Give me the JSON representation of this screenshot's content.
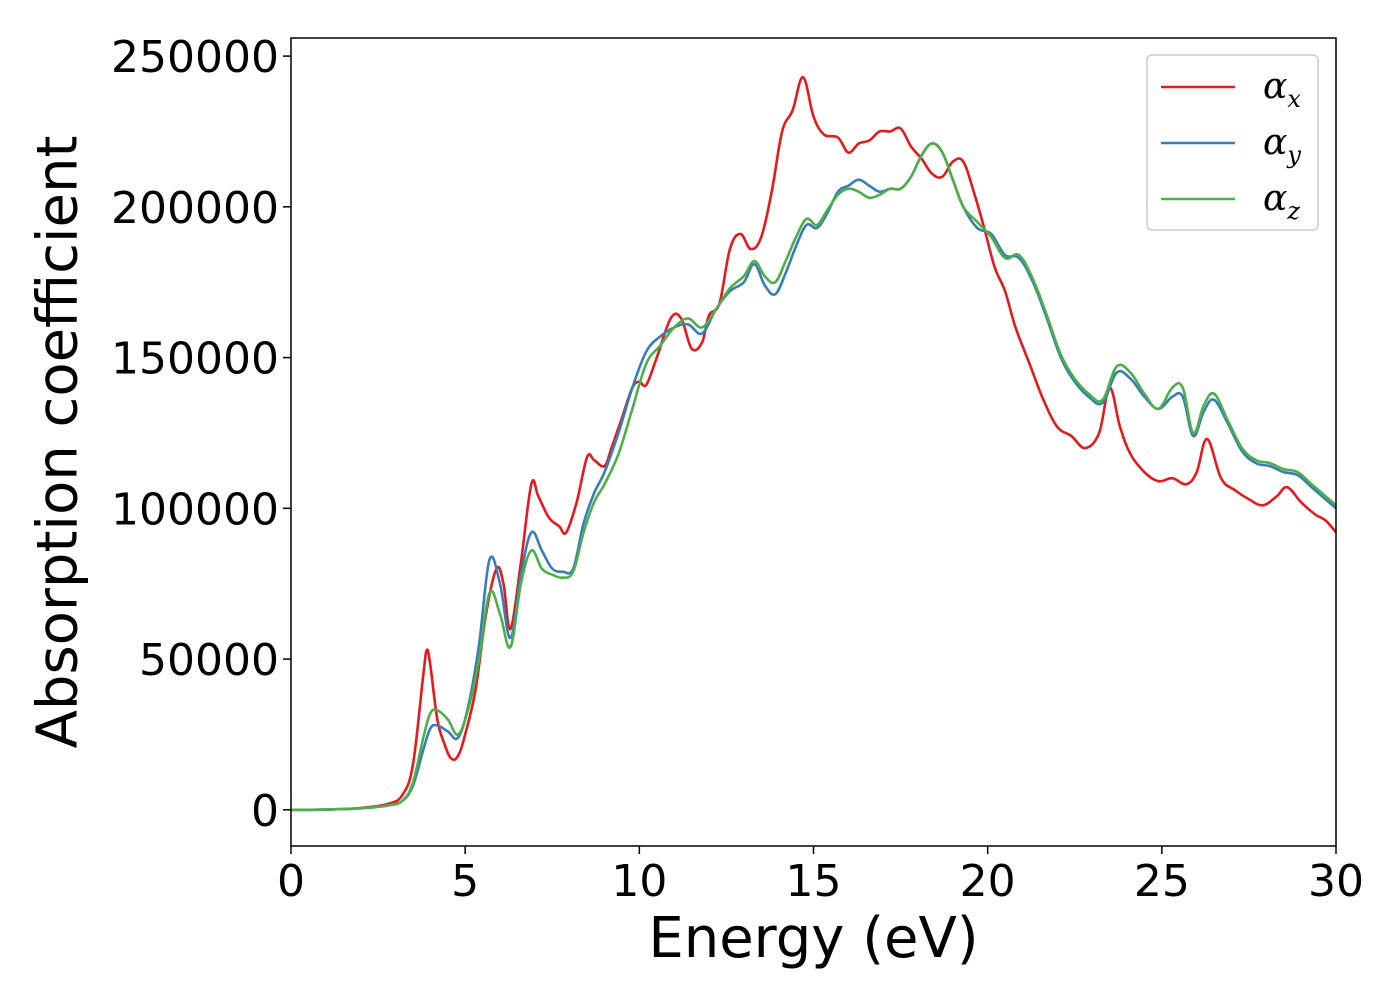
{
  "chart_data": {
    "type": "line",
    "title": "",
    "xlabel": "Energy (eV)",
    "ylabel": "Absorption coefficient",
    "xlim": [
      0,
      30
    ],
    "ylim": [
      -12000,
      256000
    ],
    "xticks": [
      0,
      5,
      10,
      15,
      20,
      25,
      30
    ],
    "yticks": [
      0,
      50000,
      100000,
      150000,
      200000,
      250000
    ],
    "grid": false,
    "legend_position": "top-right",
    "series": [
      {
        "name": "α",
        "subscript": "x",
        "color": "#e41a1c",
        "x": [
          0,
          1,
          2,
          2.8,
          3.2,
          3.5,
          3.8,
          3.9,
          4.0,
          4.2,
          4.4,
          4.6,
          4.8,
          5.0,
          5.3,
          5.6,
          5.9,
          6.1,
          6.3,
          6.6,
          6.9,
          7.1,
          7.4,
          7.7,
          7.9,
          8.2,
          8.5,
          8.7,
          9.0,
          9.2,
          9.5,
          9.8,
          10.0,
          10.2,
          10.5,
          10.9,
          11.2,
          11.5,
          11.8,
          12.0,
          12.3,
          12.6,
          12.9,
          13.2,
          13.5,
          13.8,
          14.1,
          14.4,
          14.7,
          15.0,
          15.3,
          15.7,
          16.0,
          16.3,
          16.6,
          16.9,
          17.2,
          17.5,
          17.8,
          18.1,
          18.4,
          18.7,
          19.0,
          19.3,
          19.6,
          19.9,
          20.2,
          20.5,
          20.8,
          21.2,
          21.6,
          22.0,
          22.4,
          22.8,
          23.2,
          23.5,
          23.8,
          24.1,
          24.5,
          24.9,
          25.3,
          25.7,
          26.0,
          26.3,
          26.7,
          27.1,
          27.5,
          27.9,
          28.3,
          28.6,
          29.0,
          29.4,
          29.7,
          30.0
        ],
        "values": [
          0,
          100,
          600,
          2000,
          5000,
          15000,
          45000,
          53000,
          48000,
          30000,
          22000,
          17000,
          18000,
          25000,
          40000,
          65000,
          80000,
          75000,
          60000,
          82000,
          108000,
          104000,
          97000,
          94000,
          92000,
          102000,
          117000,
          116000,
          114000,
          120000,
          130000,
          140000,
          142000,
          141000,
          150000,
          163000,
          163000,
          153000,
          155000,
          164000,
          168000,
          186000,
          191000,
          186000,
          190000,
          205000,
          225000,
          232000,
          243000,
          230000,
          224000,
          223000,
          218000,
          221000,
          222000,
          225000,
          225000,
          226000,
          220000,
          216000,
          211000,
          210000,
          215000,
          215000,
          205000,
          193000,
          180000,
          172000,
          160000,
          148000,
          136000,
          127000,
          124000,
          120000,
          125000,
          140000,
          127000,
          118000,
          112000,
          109000,
          110000,
          108000,
          112000,
          123000,
          110000,
          106000,
          103000,
          101000,
          104000,
          107000,
          102000,
          98000,
          96000,
          92000
        ]
      },
      {
        "name": "α",
        "subscript": "y",
        "color": "#377eb8",
        "x": [
          0,
          1,
          2,
          2.8,
          3.2,
          3.5,
          3.8,
          4.0,
          4.2,
          4.5,
          4.8,
          5.1,
          5.4,
          5.7,
          6.0,
          6.3,
          6.6,
          6.9,
          7.2,
          7.5,
          7.8,
          8.1,
          8.4,
          8.7,
          9.0,
          9.4,
          9.8,
          10.2,
          10.6,
          11.0,
          11.4,
          11.8,
          12.2,
          12.6,
          13.0,
          13.3,
          13.6,
          13.9,
          14.2,
          14.5,
          14.8,
          15.1,
          15.4,
          15.7,
          16.0,
          16.3,
          16.6,
          16.9,
          17.2,
          17.5,
          17.8,
          18.1,
          18.4,
          18.7,
          19.0,
          19.3,
          19.7,
          20.1,
          20.5,
          20.9,
          21.3,
          21.7,
          22.1,
          22.5,
          22.9,
          23.3,
          23.7,
          24.1,
          24.5,
          24.9,
          25.3,
          25.6,
          25.9,
          26.2,
          26.5,
          26.9,
          27.3,
          27.7,
          28.1,
          28.5,
          28.9,
          29.3,
          29.7,
          30.0
        ],
        "values": [
          0,
          100,
          500,
          1500,
          3000,
          8000,
          20000,
          27000,
          28000,
          26000,
          24000,
          35000,
          55000,
          83000,
          75000,
          57000,
          78000,
          92000,
          86000,
          80000,
          79000,
          80000,
          95000,
          105000,
          112000,
          125000,
          140000,
          152000,
          157000,
          160000,
          161000,
          158000,
          166000,
          172000,
          175000,
          181000,
          174000,
          171000,
          178000,
          187000,
          194000,
          193000,
          198000,
          205000,
          207000,
          209000,
          207000,
          205000,
          206000,
          206000,
          210000,
          217000,
          221000,
          218000,
          209000,
          200000,
          193000,
          191000,
          184000,
          183000,
          175000,
          163000,
          150000,
          142000,
          137000,
          135000,
          145000,
          143000,
          137000,
          133000,
          137000,
          137000,
          124000,
          132000,
          136000,
          128000,
          119000,
          115000,
          114000,
          112000,
          111000,
          107000,
          103000,
          100000
        ]
      },
      {
        "name": "α",
        "subscript": "z",
        "color": "#4daf4a",
        "x": [
          0,
          1,
          2,
          2.8,
          3.2,
          3.5,
          3.8,
          4.0,
          4.2,
          4.5,
          4.8,
          5.1,
          5.4,
          5.7,
          6.0,
          6.3,
          6.6,
          6.9,
          7.2,
          7.5,
          7.8,
          8.1,
          8.4,
          8.7,
          9.0,
          9.4,
          9.8,
          10.2,
          10.6,
          11.0,
          11.4,
          11.8,
          12.2,
          12.6,
          13.0,
          13.3,
          13.6,
          13.9,
          14.2,
          14.5,
          14.8,
          15.1,
          15.4,
          15.7,
          16.0,
          16.3,
          16.6,
          16.9,
          17.2,
          17.5,
          17.8,
          18.1,
          18.4,
          18.7,
          19.0,
          19.3,
          19.7,
          20.1,
          20.5,
          20.9,
          21.3,
          21.7,
          22.1,
          22.5,
          22.9,
          23.3,
          23.7,
          24.1,
          24.5,
          24.9,
          25.3,
          25.6,
          25.9,
          26.2,
          26.5,
          26.9,
          27.3,
          27.7,
          28.1,
          28.5,
          28.9,
          29.3,
          29.7,
          30.0
        ],
        "values": [
          0,
          100,
          500,
          1500,
          3000,
          9000,
          24000,
          32000,
          33000,
          30000,
          25000,
          34000,
          50000,
          72000,
          65000,
          54000,
          75000,
          86000,
          80000,
          78000,
          77000,
          79000,
          92000,
          102000,
          108000,
          118000,
          133000,
          148000,
          154000,
          160000,
          163000,
          160000,
          166000,
          173000,
          177000,
          182000,
          177000,
          175000,
          182000,
          190000,
          196000,
          194000,
          199000,
          204000,
          206000,
          205000,
          203000,
          204000,
          206000,
          206000,
          210000,
          217000,
          221000,
          218000,
          209000,
          200000,
          195000,
          190000,
          183000,
          184000,
          176000,
          164000,
          151000,
          143000,
          138000,
          136000,
          147000,
          145000,
          138000,
          133000,
          140000,
          140000,
          125000,
          134000,
          138000,
          129000,
          120000,
          116000,
          115000,
          113000,
          112000,
          108000,
          104000,
          101000
        ]
      }
    ]
  }
}
